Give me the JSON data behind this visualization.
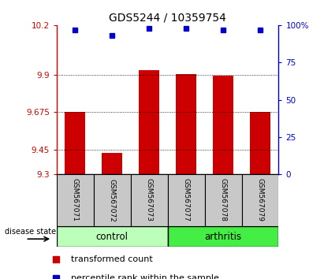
{
  "title": "GDS5244 / 10359754",
  "samples": [
    "GSM567071",
    "GSM567072",
    "GSM567073",
    "GSM567077",
    "GSM567078",
    "GSM567079"
  ],
  "groups": [
    "control",
    "control",
    "control",
    "arthritis",
    "arthritis",
    "arthritis"
  ],
  "transformed_counts": [
    9.675,
    9.43,
    9.93,
    9.905,
    9.895,
    9.675
  ],
  "percentile_ranks": [
    97,
    93,
    98,
    98,
    97,
    97
  ],
  "ylim_left": [
    9.3,
    10.2
  ],
  "ylim_right": [
    0,
    100
  ],
  "yticks_left": [
    9.3,
    9.45,
    9.675,
    9.9,
    10.2
  ],
  "yticks_right": [
    0,
    25,
    50,
    75,
    100
  ],
  "ytick_labels_left": [
    "9.3",
    "9.45",
    "9.675",
    "9.9",
    "10.2"
  ],
  "ytick_labels_right": [
    "0",
    "25",
    "50",
    "75",
    "100%"
  ],
  "bar_color": "#cc0000",
  "dot_color": "#0000cc",
  "control_color": "#bbffbb",
  "arthritis_color": "#44ee44",
  "bar_bottom": 9.3,
  "disease_state_label": "disease state",
  "legend_bar_label": "transformed count",
  "legend_dot_label": "percentile rank within the sample",
  "tick_label_area_bg": "#c8c8c8"
}
